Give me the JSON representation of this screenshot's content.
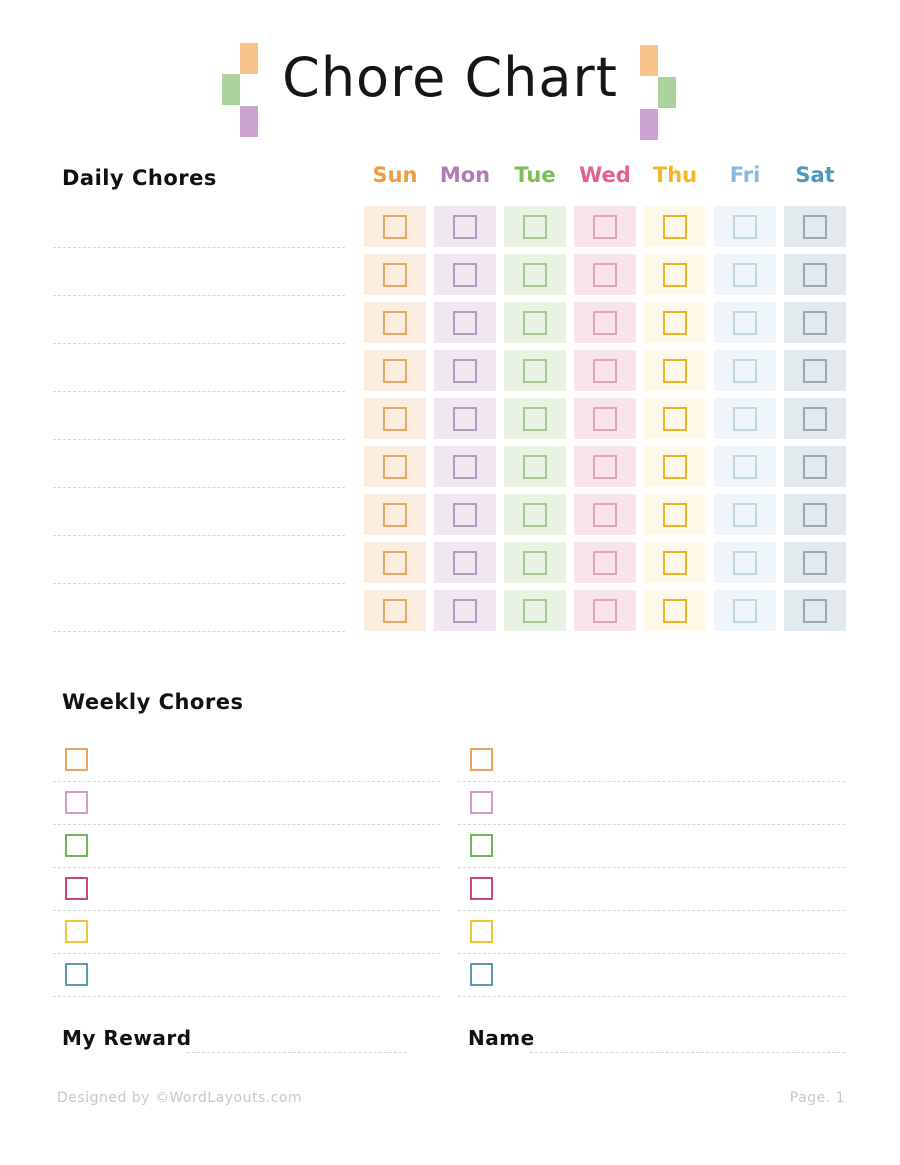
{
  "title": "Chore Chart",
  "decoration": {
    "orange": "#F6C38A",
    "green": "#ABD29A",
    "purple": "#CBA4CF"
  },
  "daily": {
    "heading": "Daily Chores",
    "rows": 9,
    "days": [
      {
        "label": "Sun",
        "label_color": "#EF9C44",
        "cell_bg": "#FBEEE1",
        "box_color": "#E3A868"
      },
      {
        "label": "Mon",
        "label_color": "#B57AB4",
        "cell_bg": "#F1E7F1",
        "box_color": "#B897C2"
      },
      {
        "label": "Tue",
        "label_color": "#7CBF58",
        "cell_bg": "#EAF2E4",
        "box_color": "#A5C98F"
      },
      {
        "label": "Wed",
        "label_color": "#E2628C",
        "cell_bg": "#F9E4EC",
        "box_color": "#DFA3BF"
      },
      {
        "label": "Thu",
        "label_color": "#F2B824",
        "cell_bg": "#FDF8E7",
        "box_color": "#E7B525"
      },
      {
        "label": "Fri",
        "label_color": "#87BADC",
        "cell_bg": "#EFF5F9",
        "box_color": "#BFD6E3"
      },
      {
        "label": "Sat",
        "label_color": "#4E9AB8",
        "cell_bg": "#E2EAEE",
        "box_color": "#93ABB9"
      }
    ]
  },
  "weekly": {
    "heading": "Weekly Chores",
    "columns": 2,
    "items_per_column": 6,
    "checkbox_colors": [
      "#EDA55E",
      "#D49BC8",
      "#6FB754",
      "#CC4778",
      "#EEC435",
      "#5B9BAD"
    ]
  },
  "fields": {
    "reward_label": "My Reward",
    "name_label": "Name"
  },
  "footer": {
    "credit": "Designed by ©WordLayouts.com",
    "page": "Page. 1"
  }
}
